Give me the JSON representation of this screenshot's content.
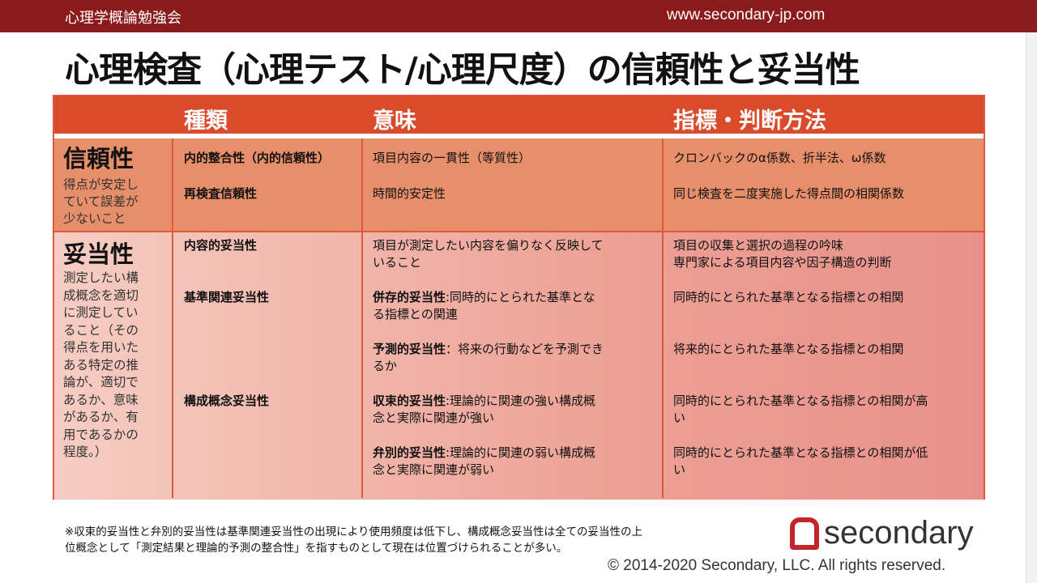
{
  "header": {
    "left": "心理学概論勉強会",
    "right": "www.secondary-jp.com"
  },
  "title": "心理検査（心理テスト/心理尺度）の信頼性と妥当性",
  "table": {
    "columns": [
      "種類",
      "意味",
      "指標・判断方法"
    ],
    "reliability": {
      "name": "信頼性",
      "desc": [
        "得点が安定し",
        "ていて誤差が",
        "少ないこと"
      ],
      "rows": [
        {
          "type": "内的整合性（内的信頼性）",
          "meaning": [
            "項目内容の一貫性（等質性）"
          ],
          "index": [
            "クロンバックのα係数、折半法、ω係数"
          ]
        },
        {
          "type": "再検査信頼性",
          "meaning": [
            "時間的安定性"
          ],
          "index": [
            "同じ検査を二度実施した得点間の相関係数"
          ]
        }
      ]
    },
    "validity": {
      "name": "妥当性",
      "desc": [
        "測定したい構",
        "成概念を適切",
        "に測定してい",
        "ること（その",
        "得点を用いた",
        "ある特定の推",
        "論が、適切で",
        "あるか、意味",
        "があるか、有",
        "用であるかの",
        "程度。）"
      ],
      "types": [
        "内容的妥当性",
        "基準関連妥当性",
        "構成概念妥当性"
      ],
      "rows": [
        {
          "label": "",
          "meaning": [
            "項目が測定したい内容を偏りなく反映して",
            "いること"
          ],
          "index": [
            "項目の収集と選択の過程の吟味",
            "専門家による項目内容や因子構造の判断"
          ]
        },
        {
          "label": "併存的妥当性",
          "meaning": [
            ":同時的にとられた基準とな",
            "る指標との関連"
          ],
          "index": [
            "同時的にとられた基準となる指標との相関"
          ]
        },
        {
          "label": "予測的妥当性",
          "meaning": [
            "：将来の行動などを予測でき",
            "るか"
          ],
          "index": [
            "将来的にとられた基準となる指標との相関"
          ]
        },
        {
          "label": "収束的妥当性",
          "meaning": [
            ":理論的に関連の強い構成概",
            "念と実際に関連が強い"
          ],
          "index": [
            "同時的にとられた基準となる指標との相関が高",
            "い"
          ]
        },
        {
          "label": "弁別的妥当性",
          "meaning": [
            ":理論的に関連の弱い構成概",
            "念と実際に関連が弱い"
          ],
          "index": [
            "同時的にとられた基準となる指標との相関が低",
            "い"
          ]
        }
      ]
    }
  },
  "note": [
    "※収束的妥当性と弁別的妥当性は基準関連妥当性の出現により使用頻度は低下し、構成概念妥当性は全ての妥当性の上",
    "位概念として「測定結果と理論的予測の整合性」を指すものとして現在は位置づけられることが多い。"
  ],
  "logo": "secondary",
  "copyright": "© 2014-2020 Secondary, LLC. All rights reserved.",
  "colors": {
    "topbar": "#8a1a1c",
    "header": "#d94b2b",
    "reliability": "#e78f6a",
    "logo": "#c0262c"
  }
}
